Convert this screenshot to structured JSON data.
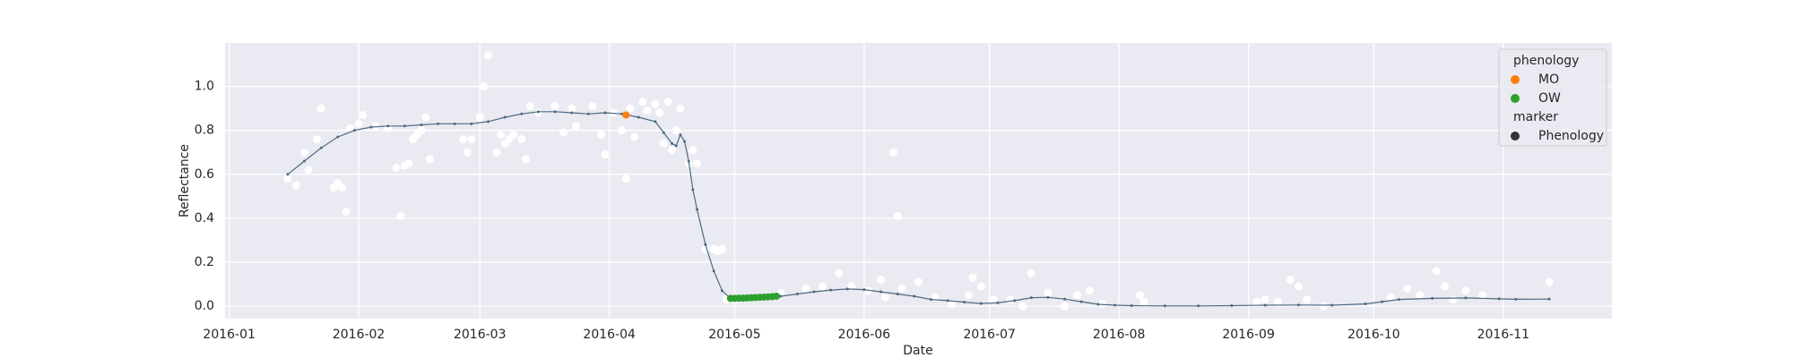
{
  "chart_data": {
    "type": "line",
    "x_label": "Date",
    "y_label": "Reflectance",
    "xlim": [
      "2015-12-31",
      "2016-11-27"
    ],
    "xticks": [
      {
        "value": "2016-01-01",
        "label": "2016-01"
      },
      {
        "value": "2016-02-01",
        "label": "2016-02"
      },
      {
        "value": "2016-03-01",
        "label": "2016-03"
      },
      {
        "value": "2016-04-01",
        "label": "2016-04"
      },
      {
        "value": "2016-05-01",
        "label": "2016-05"
      },
      {
        "value": "2016-06-01",
        "label": "2016-06"
      },
      {
        "value": "2016-07-01",
        "label": "2016-07"
      },
      {
        "value": "2016-08-01",
        "label": "2016-08"
      },
      {
        "value": "2016-09-01",
        "label": "2016-09"
      },
      {
        "value": "2016-10-01",
        "label": "2016-10"
      },
      {
        "value": "2016-11-01",
        "label": "2016-11"
      }
    ],
    "ylim": [
      -0.057,
      1.198
    ],
    "yticks": [
      {
        "value": 0,
        "label": "0.0"
      },
      {
        "value": 0.2,
        "label": "0.2"
      },
      {
        "value": 0.4,
        "label": "0.4"
      },
      {
        "value": 0.6,
        "label": "0.6"
      },
      {
        "value": 0.8,
        "label": "0.8"
      },
      {
        "value": 1,
        "label": "1.0"
      }
    ],
    "grid": true,
    "background": "#eaeaf2",
    "legend_position": "upper right",
    "points": {
      "color": "#ffffff",
      "x": [
        "2016-01-15",
        "2016-01-17",
        "2016-01-19",
        "2016-01-20",
        "2016-01-22",
        "2016-01-23",
        "2016-01-26",
        "2016-01-27",
        "2016-01-28",
        "2016-01-29",
        "2016-01-30",
        "2016-02-01",
        "2016-02-02",
        "2016-02-05",
        "2016-02-08",
        "2016-02-10",
        "2016-02-11",
        "2016-02-12",
        "2016-02-13",
        "2016-02-14",
        "2016-02-15",
        "2016-02-16",
        "2016-02-17",
        "2016-02-18",
        "2016-02-26",
        "2016-02-27",
        "2016-02-28",
        "2016-03-01",
        "2016-03-02",
        "2016-03-03",
        "2016-03-05",
        "2016-03-06",
        "2016-03-07",
        "2016-03-08",
        "2016-03-09",
        "2016-03-11",
        "2016-03-12",
        "2016-03-13",
        "2016-03-15",
        "2016-03-19",
        "2016-03-21",
        "2016-03-23",
        "2016-03-24",
        "2016-03-28",
        "2016-03-30",
        "2016-03-31",
        "2016-04-02",
        "2016-04-04",
        "2016-04-05",
        "2016-04-06",
        "2016-04-07",
        "2016-04-09",
        "2016-04-10",
        "2016-04-12",
        "2016-04-13",
        "2016-04-14",
        "2016-04-15",
        "2016-04-16",
        "2016-04-17",
        "2016-04-18",
        "2016-04-20",
        "2016-04-21",
        "2016-04-22",
        "2016-04-24",
        "2016-04-26",
        "2016-04-27",
        "2016-04-28",
        "2016-04-29",
        "2016-05-01",
        "2016-05-12",
        "2016-05-18",
        "2016-05-22",
        "2016-05-26",
        "2016-05-29",
        "2016-06-02",
        "2016-06-05",
        "2016-06-06",
        "2016-06-08",
        "2016-06-09",
        "2016-06-10",
        "2016-06-14",
        "2016-06-18",
        "2016-06-22",
        "2016-06-26",
        "2016-06-27",
        "2016-06-29",
        "2016-07-02",
        "2016-07-06",
        "2016-07-09",
        "2016-07-11",
        "2016-07-15",
        "2016-07-19",
        "2016-07-22",
        "2016-07-25",
        "2016-07-28",
        "2016-08-06",
        "2016-08-07",
        "2016-09-03",
        "2016-09-05",
        "2016-09-08",
        "2016-09-11",
        "2016-09-13",
        "2016-09-15",
        "2016-09-19",
        "2016-10-05",
        "2016-10-09",
        "2016-10-12",
        "2016-10-16",
        "2016-10-18",
        "2016-10-20",
        "2016-10-23",
        "2016-10-27",
        "2016-11-12"
      ],
      "values": [
        0.58,
        0.55,
        0.7,
        0.62,
        0.76,
        0.9,
        0.54,
        0.56,
        0.54,
        0.43,
        0.81,
        0.83,
        0.87,
        0.82,
        0.81,
        0.63,
        0.41,
        0.64,
        0.65,
        0.76,
        0.78,
        0.8,
        0.86,
        0.67,
        0.76,
        0.7,
        0.76,
        0.86,
        1.0,
        1.14,
        0.7,
        0.78,
        0.74,
        0.76,
        0.78,
        0.76,
        0.67,
        0.91,
        0.88,
        0.91,
        0.79,
        0.9,
        0.82,
        0.91,
        0.78,
        0.69,
        0.88,
        0.8,
        0.58,
        0.9,
        0.77,
        0.93,
        0.89,
        0.92,
        0.88,
        0.74,
        0.93,
        0.71,
        0.8,
        0.9,
        0.65,
        0.71,
        0.65,
        0.26,
        0.26,
        0.25,
        0.26,
        0.03,
        0.03,
        0.06,
        0.08,
        0.09,
        0.15,
        0.09,
        0.07,
        0.12,
        0.04,
        0.7,
        0.41,
        0.08,
        0.11,
        0.04,
        0.01,
        0.05,
        0.13,
        0.09,
        0.03,
        0.03,
        0.0,
        0.15,
        0.06,
        0.0,
        0.05,
        0.07,
        0.01,
        0.05,
        0.02,
        0.02,
        0.03,
        0.02,
        0.12,
        0.09,
        0.03,
        0.0,
        0.04,
        0.08,
        0.05,
        0.16,
        0.09,
        0.03,
        0.07,
        0.05,
        0.11
      ]
    },
    "line": {
      "color": "#4c6a80",
      "x": [
        "2016-01-15",
        "2016-01-19",
        "2016-01-23",
        "2016-01-27",
        "2016-01-31",
        "2016-02-04",
        "2016-02-08",
        "2016-02-12",
        "2016-02-16",
        "2016-02-20",
        "2016-02-24",
        "2016-02-28",
        "2016-03-03",
        "2016-03-07",
        "2016-03-11",
        "2016-03-15",
        "2016-03-19",
        "2016-03-23",
        "2016-03-27",
        "2016-03-31",
        "2016-04-04",
        "2016-04-08",
        "2016-04-12",
        "2016-04-14",
        "2016-04-16",
        "2016-04-17",
        "2016-04-18",
        "2016-04-19",
        "2016-04-20",
        "2016-04-21",
        "2016-04-22",
        "2016-04-24",
        "2016-04-26",
        "2016-04-28",
        "2016-04-30",
        "2016-05-04",
        "2016-05-08",
        "2016-05-12",
        "2016-05-16",
        "2016-05-20",
        "2016-05-24",
        "2016-05-28",
        "2016-06-01",
        "2016-06-05",
        "2016-06-09",
        "2016-06-13",
        "2016-06-17",
        "2016-06-21",
        "2016-06-25",
        "2016-06-29",
        "2016-07-03",
        "2016-07-07",
        "2016-07-11",
        "2016-07-15",
        "2016-07-19",
        "2016-07-23",
        "2016-07-27",
        "2016-07-31",
        "2016-08-04",
        "2016-08-12",
        "2016-08-20",
        "2016-08-28",
        "2016-09-05",
        "2016-09-13",
        "2016-09-21",
        "2016-09-29",
        "2016-10-03",
        "2016-10-07",
        "2016-10-15",
        "2016-10-23",
        "2016-10-31",
        "2016-11-04",
        "2016-11-12"
      ],
      "values": [
        0.6,
        0.66,
        0.72,
        0.77,
        0.8,
        0.815,
        0.82,
        0.82,
        0.825,
        0.83,
        0.83,
        0.83,
        0.84,
        0.86,
        0.875,
        0.885,
        0.885,
        0.88,
        0.875,
        0.88,
        0.875,
        0.86,
        0.84,
        0.79,
        0.74,
        0.73,
        0.78,
        0.75,
        0.66,
        0.53,
        0.44,
        0.28,
        0.16,
        0.07,
        0.035,
        0.038,
        0.041,
        0.045,
        0.055,
        0.065,
        0.073,
        0.078,
        0.075,
        0.065,
        0.055,
        0.045,
        0.03,
        0.025,
        0.018,
        0.012,
        0.015,
        0.025,
        0.038,
        0.04,
        0.032,
        0.02,
        0.008,
        0.004,
        0.002,
        0.001,
        0.001,
        0.002,
        0.004,
        0.005,
        0.004,
        0.01,
        0.02,
        0.03,
        0.035,
        0.037,
        0.033,
        0.031,
        0.032
      ]
    },
    "phenology": {
      "title": "phenology",
      "series": [
        {
          "name": "MO",
          "color": "#ff7f0e",
          "x": [
            "2016-04-05"
          ],
          "values": [
            0.87
          ]
        },
        {
          "name": "OW",
          "color": "#2ca02c",
          "x": [
            "2016-04-30",
            "2016-05-01",
            "2016-05-02",
            "2016-05-03",
            "2016-05-04",
            "2016-05-05",
            "2016-05-06",
            "2016-05-07",
            "2016-05-08",
            "2016-05-09",
            "2016-05-10",
            "2016-05-11"
          ],
          "values": [
            0.035,
            0.035,
            0.036,
            0.036,
            0.037,
            0.038,
            0.039,
            0.04,
            0.041,
            0.042,
            0.043,
            0.045
          ]
        }
      ]
    },
    "marker": {
      "title": "marker",
      "entries": [
        {
          "name": "Phenology",
          "color": "#333333"
        }
      ]
    }
  }
}
